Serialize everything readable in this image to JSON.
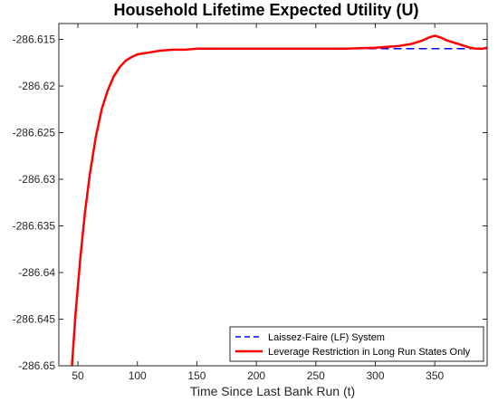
{
  "chart_data": {
    "type": "line",
    "title": "Household Lifetime Expected Utility (U)",
    "xlabel": "Time Since Last Bank Run (t)",
    "ylabel": "",
    "xlim": [
      34,
      394
    ],
    "ylim": [
      -286.65,
      -286.6133
    ],
    "xticks": [
      50,
      100,
      150,
      200,
      250,
      300,
      350
    ],
    "yticks": [
      -286.615,
      -286.62,
      -286.625,
      -286.63,
      -286.635,
      -286.64,
      -286.645,
      -286.65
    ],
    "ytick_labels": [
      "-286.615",
      "-286.62",
      "-286.625",
      "-286.63",
      "-286.635",
      "-286.64",
      "-286.645",
      "-286.65"
    ],
    "legend_position": "bottom-right",
    "grid": false,
    "series": [
      {
        "name": "Laissez-Faire (LF) System",
        "color": "#0000ff",
        "style": "dashed",
        "x": [
          45,
          48,
          52,
          56,
          60,
          65,
          70,
          75,
          80,
          85,
          90,
          95,
          100,
          105,
          110,
          115,
          120,
          130,
          140,
          150,
          165,
          180,
          200,
          225,
          250,
          275,
          300,
          325,
          350,
          375,
          394
        ],
        "y": [
          -286.65,
          -286.6445,
          -286.6385,
          -286.6335,
          -286.6295,
          -286.6255,
          -286.6225,
          -286.6205,
          -286.619,
          -286.618,
          -286.6173,
          -286.6169,
          -286.6166,
          -286.6165,
          -286.6164,
          -286.6163,
          -286.6162,
          -286.6161,
          -286.6161,
          -286.616,
          -286.616,
          -286.616,
          -286.616,
          -286.616,
          -286.616,
          -286.616,
          -286.616,
          -286.616,
          -286.616,
          -286.616,
          -286.616
        ]
      },
      {
        "name": "Leverage Restriction in Long Run States Only",
        "color": "#ff0000",
        "style": "solid",
        "x": [
          45,
          48,
          52,
          56,
          60,
          65,
          70,
          75,
          80,
          85,
          90,
          95,
          100,
          105,
          110,
          115,
          120,
          130,
          140,
          150,
          165,
          180,
          200,
          225,
          250,
          275,
          300,
          310,
          320,
          330,
          340,
          345,
          350,
          355,
          360,
          370,
          380,
          385,
          390,
          394
        ],
        "y": [
          -286.65,
          -286.6445,
          -286.6385,
          -286.6335,
          -286.6295,
          -286.6255,
          -286.6225,
          -286.6205,
          -286.619,
          -286.618,
          -286.6173,
          -286.6169,
          -286.6166,
          -286.6165,
          -286.6164,
          -286.6163,
          -286.6162,
          -286.6161,
          -286.6161,
          -286.616,
          -286.616,
          -286.616,
          -286.616,
          -286.616,
          -286.616,
          -286.616,
          -286.6159,
          -286.6158,
          -286.6157,
          -286.6155,
          -286.6151,
          -286.6148,
          -286.6146,
          -286.6148,
          -286.6151,
          -286.6155,
          -286.6159,
          -286.616,
          -286.616,
          -286.6159
        ]
      }
    ]
  }
}
